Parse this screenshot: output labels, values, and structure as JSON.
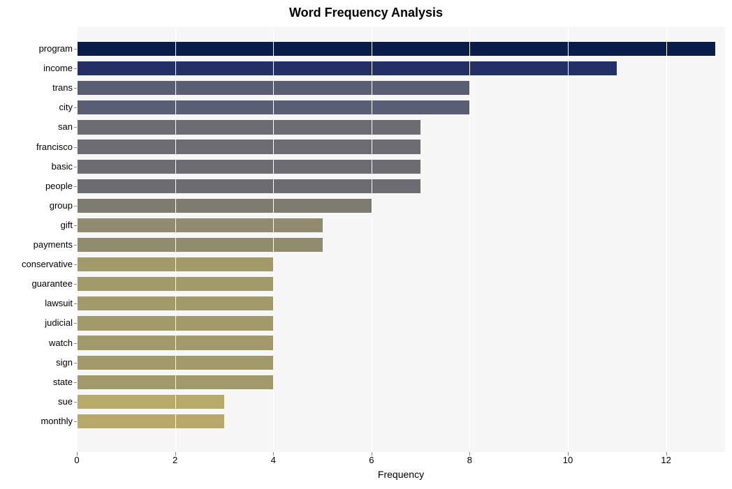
{
  "chart": {
    "type": "bar-horizontal",
    "title": "Word Frequency Analysis",
    "title_fontsize": 18,
    "title_fontweight": "bold",
    "xlabel": "Frequency",
    "xlabel_fontsize": 14,
    "background_color": "#ffffff",
    "plot_bg_color": "#f7f7f7",
    "grid_color": "#ffffff",
    "tick_fontsize": 13,
    "tick_color": "#000000",
    "x_ticks": [
      0,
      2,
      4,
      6,
      8,
      10,
      12
    ],
    "x_max": 13.2,
    "bar_height_ratio": 0.72,
    "bars": [
      {
        "label": "program",
        "value": 13,
        "color": "#081d4a"
      },
      {
        "label": "income",
        "value": 11,
        "color": "#233066"
      },
      {
        "label": "trans",
        "value": 8,
        "color": "#595e75"
      },
      {
        "label": "city",
        "value": 8,
        "color": "#595e75"
      },
      {
        "label": "san",
        "value": 7,
        "color": "#6c6c72"
      },
      {
        "label": "francisco",
        "value": 7,
        "color": "#6c6c72"
      },
      {
        "label": "basic",
        "value": 7,
        "color": "#6c6c72"
      },
      {
        "label": "people",
        "value": 7,
        "color": "#6c6c72"
      },
      {
        "label": "group",
        "value": 6,
        "color": "#7e7b70"
      },
      {
        "label": "gift",
        "value": 5,
        "color": "#908b6e"
      },
      {
        "label": "payments",
        "value": 5,
        "color": "#908b6e"
      },
      {
        "label": "conservative",
        "value": 4,
        "color": "#a39a6b"
      },
      {
        "label": "guarantee",
        "value": 4,
        "color": "#a39a6b"
      },
      {
        "label": "lawsuit",
        "value": 4,
        "color": "#a39a6b"
      },
      {
        "label": "judicial",
        "value": 4,
        "color": "#a39a6b"
      },
      {
        "label": "watch",
        "value": 4,
        "color": "#a39a6b"
      },
      {
        "label": "sign",
        "value": 4,
        "color": "#a39a6b"
      },
      {
        "label": "state",
        "value": 4,
        "color": "#a39a6b"
      },
      {
        "label": "sue",
        "value": 3,
        "color": "#b6a969"
      },
      {
        "label": "monthly",
        "value": 3,
        "color": "#b6a969"
      }
    ]
  }
}
